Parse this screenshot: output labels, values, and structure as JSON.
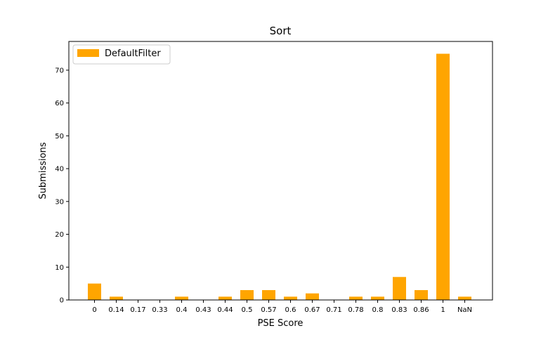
{
  "chart_data": {
    "type": "bar",
    "title": "Sort",
    "xlabel": "PSE Score",
    "ylabel": "Submissions",
    "categories": [
      "0",
      "0.14",
      "0.17",
      "0.33",
      "0.4",
      "0.43",
      "0.44",
      "0.5",
      "0.57",
      "0.6",
      "0.67",
      "0.71",
      "0.78",
      "0.8",
      "0.83",
      "0.86",
      "1",
      "NaN"
    ],
    "series": [
      {
        "name": "DefaultFilter",
        "color": "#ffa500",
        "values": [
          5,
          1,
          0,
          0,
          1,
          0,
          1,
          3,
          3,
          1,
          2,
          0,
          1,
          1,
          7,
          3,
          75,
          1
        ]
      }
    ],
    "ylim": [
      0,
      78.75
    ],
    "yticks": [
      0,
      10,
      20,
      30,
      40,
      50,
      60,
      70
    ],
    "legend_position": "top-left",
    "grid": false
  }
}
